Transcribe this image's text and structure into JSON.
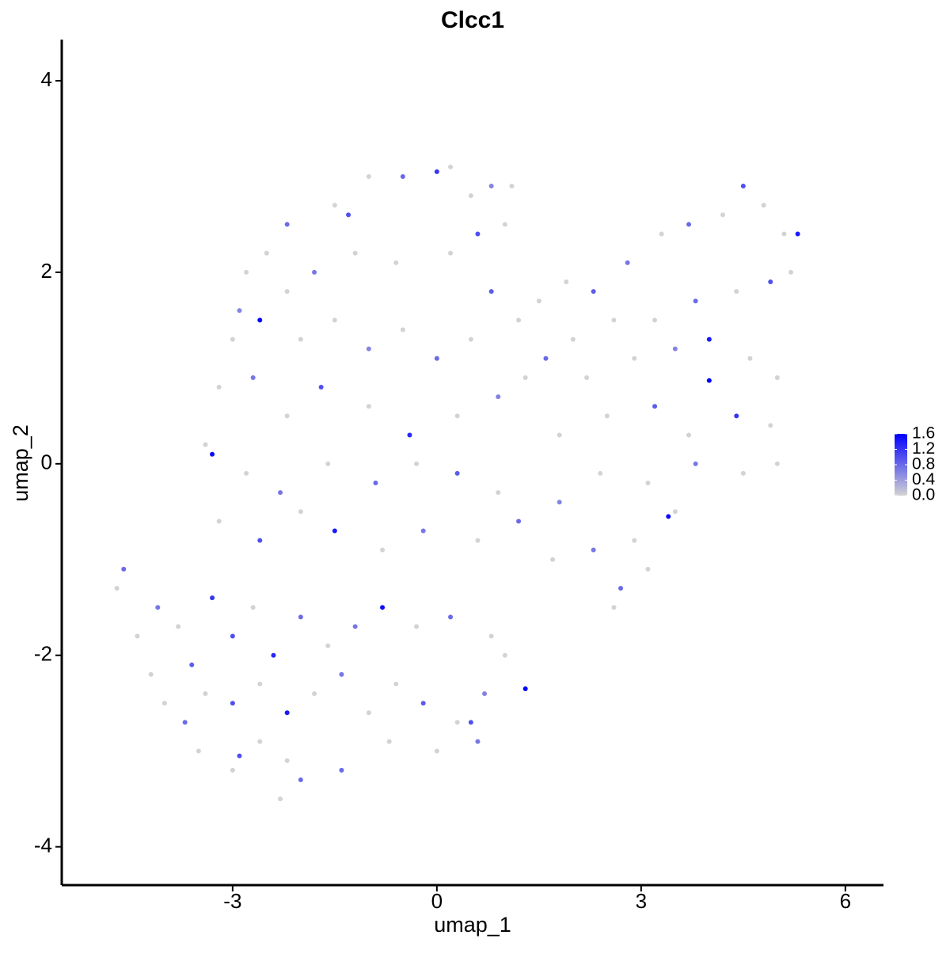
{
  "chart_data": {
    "type": "scatter",
    "title": "Clcc1",
    "x_label": "umap_1",
    "y_label": "umap_2",
    "xlim": [
      -5.51,
      6.56
    ],
    "xticks": [
      -3,
      0,
      3,
      6
    ],
    "ylim": [
      -4.4,
      4.43
    ],
    "yticks": [
      -4,
      -2,
      0,
      2,
      4
    ],
    "grid": false,
    "color_low": "#d3d3d3",
    "color_high": "#0000ff",
    "clim": [
      0,
      1.6
    ],
    "cticks": [
      {
        "value": 0,
        "label": "0.0"
      },
      0.4,
      0.8,
      1.2,
      1.6
    ],
    "legend": "right",
    "x": [
      -1.5,
      -1.3,
      -1.0,
      -0.5,
      0.0,
      0.2,
      0.5,
      0.8,
      1.1,
      -2.2,
      -2.5,
      -2.8,
      -2.9,
      -2.2,
      -1.8,
      -1.2,
      -0.6,
      0.2,
      0.6,
      1.0,
      -3.0,
      -2.6,
      -2.0,
      -1.5,
      -1.0,
      -0.5,
      0.0,
      0.5,
      0.8,
      1.2,
      -3.2,
      -2.7,
      -2.2,
      -1.7,
      -1.0,
      -0.4,
      0.3,
      0.9,
      1.3,
      -3.4,
      -3.3,
      -2.8,
      -2.3,
      -1.6,
      -0.9,
      -0.3,
      0.3,
      0.9,
      -3.2,
      -2.6,
      -2.0,
      -1.5,
      -0.8,
      -0.2,
      0.6,
      1.2,
      1.5,
      1.9,
      2.3,
      2.8,
      3.3,
      3.7,
      4.2,
      4.5,
      4.8,
      5.1,
      5.3,
      5.2,
      4.9,
      4.4,
      3.8,
      3.2,
      2.6,
      2.0,
      1.6,
      2.2,
      2.9,
      3.5,
      4.0,
      4.6,
      5.0,
      4.0,
      3.2,
      2.5,
      1.8,
      3.7,
      4.4,
      4.9,
      5.0,
      4.5,
      3.8,
      3.1,
      2.4,
      1.8,
      3.5,
      3.4,
      2.9,
      2.3,
      1.7,
      3.1,
      2.7,
      2.6,
      -4.7,
      -4.6,
      -4.4,
      -4.1,
      -4.2,
      -3.8,
      -3.6,
      -3.3,
      -3.0,
      -2.7,
      -2.4,
      -2.0,
      -1.6,
      -1.2,
      -0.8,
      -0.3,
      0.2,
      0.8,
      -4.0,
      -3.7,
      -3.4,
      -3.0,
      -2.6,
      -2.2,
      -1.8,
      -1.4,
      -1.0,
      -0.6,
      -0.2,
      0.3,
      0.7,
      1.3,
      1.0,
      -3.5,
      -3.0,
      -2.9,
      -2.6,
      -2.2,
      -2.0,
      -2.3,
      -1.4,
      -0.7,
      0.0,
      0.5,
      0.6
    ],
    "y": [
      2.7,
      2.6,
      3.0,
      3.0,
      3.05,
      3.1,
      2.8,
      2.9,
      2.9,
      2.5,
      2.2,
      2.0,
      1.6,
      1.8,
      2.0,
      2.2,
      2.1,
      2.2,
      2.4,
      2.5,
      1.3,
      1.5,
      1.3,
      1.5,
      1.2,
      1.4,
      1.1,
      1.3,
      1.8,
      1.5,
      0.8,
      0.9,
      0.5,
      0.8,
      0.6,
      0.3,
      0.5,
      0.7,
      0.9,
      0.2,
      0.1,
      -0.1,
      -0.3,
      0.0,
      -0.2,
      0.0,
      -0.1,
      -0.3,
      -0.6,
      -0.8,
      -0.5,
      -0.7,
      -0.9,
      -0.7,
      -0.8,
      -0.6,
      1.7,
      1.9,
      1.8,
      2.1,
      2.4,
      2.5,
      2.6,
      2.9,
      2.7,
      2.4,
      2.4,
      2.0,
      1.9,
      1.8,
      1.7,
      1.5,
      1.5,
      1.3,
      1.1,
      0.9,
      1.1,
      1.2,
      1.3,
      1.1,
      0.9,
      0.87,
      0.6,
      0.5,
      0.3,
      0.3,
      0.5,
      0.4,
      0.0,
      -0.1,
      0.0,
      -0.2,
      -0.1,
      -0.4,
      -0.5,
      -0.55,
      -0.8,
      -0.9,
      -1.0,
      -1.1,
      -1.3,
      -1.5,
      -1.3,
      -1.1,
      -1.8,
      -1.5,
      -2.2,
      -1.7,
      -2.1,
      -1.4,
      -1.8,
      -1.5,
      -2.0,
      -1.6,
      -1.9,
      -1.7,
      -1.5,
      -1.7,
      -1.6,
      -1.8,
      -2.5,
      -2.7,
      -2.4,
      -2.5,
      -2.3,
      -2.6,
      -2.4,
      -2.2,
      -2.6,
      -2.3,
      -2.5,
      -2.7,
      -2.4,
      -2.35,
      -2.0,
      -3.0,
      -3.2,
      -3.05,
      -2.9,
      -3.1,
      -3.3,
      -3.5,
      -3.2,
      -2.9,
      -3.0,
      -2.7,
      -2.9
    ],
    "values": [
      0,
      1.0,
      0,
      0.8,
      1.2,
      0,
      0,
      0.6,
      0,
      0.8,
      0,
      0,
      0.6,
      0,
      0.7,
      0,
      0,
      0,
      1.0,
      0,
      0,
      1.6,
      0,
      0,
      0.6,
      0,
      0.8,
      0,
      0.9,
      0,
      0,
      0.7,
      0,
      1.0,
      0,
      1.3,
      0,
      0.6,
      0,
      0,
      1.5,
      0,
      0.7,
      0,
      0.8,
      0,
      0.9,
      0,
      0,
      1.0,
      0,
      1.4,
      0,
      0.7,
      0,
      0.8,
      0,
      0,
      0.9,
      0.7,
      0,
      0.8,
      0,
      1.0,
      0,
      0,
      1.4,
      0,
      1.0,
      0,
      0.8,
      0,
      0,
      0,
      0.8,
      0,
      0,
      0.6,
      1.4,
      0,
      0,
      1.6,
      0.9,
      0,
      0,
      0,
      1.2,
      0,
      0,
      0,
      0.7,
      0,
      0,
      0.6,
      0,
      1.5,
      0,
      0.7,
      0,
      0,
      0.8,
      0,
      0,
      0.8,
      0,
      0.7,
      0,
      0,
      0.9,
      1.2,
      1.0,
      0,
      1.3,
      0.8,
      0,
      0.7,
      1.5,
      0,
      0.8,
      0,
      0,
      0.8,
      0,
      1.0,
      0,
      1.4,
      0,
      0.7,
      0,
      0,
      0.9,
      0,
      0.6,
      1.6,
      0,
      0,
      0,
      1.0,
      0,
      0,
      0.8,
      0,
      0.8,
      0,
      0,
      1.0,
      0.7
    ]
  }
}
